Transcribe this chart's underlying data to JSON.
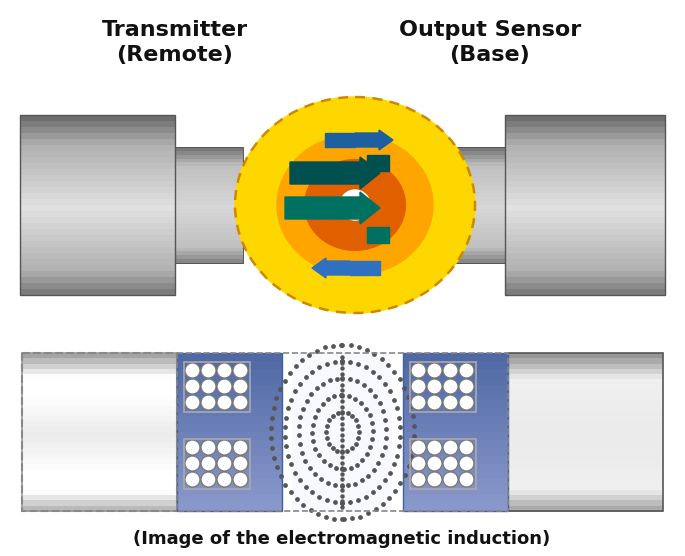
{
  "title_left": "Transmitter\n(Remote)",
  "title_right": "Output Sensor\n(Base)",
  "bottom_label": "(Image of the electromagnetic induction)",
  "bg_color": "#ffffff",
  "title_fontsize": 16,
  "label_fontsize": 13,
  "fig_width": 6.85,
  "fig_height": 5.56,
  "colors": {
    "yellow": "#FFD700",
    "orange_mid": "#FFA500",
    "orange_dark": "#E06000",
    "white": "#FFFFFF",
    "teal_dark": "#005050",
    "teal": "#007060",
    "blue": "#1E5FA0",
    "blue2": "#3070C0",
    "dashed_border": "#CC8800",
    "silver_hi": "#f0f0f0",
    "silver_lo": "#888888",
    "coil_gray": "#909090",
    "blue_panel": "#8090C0",
    "blue_panel_dark": "#5060A0",
    "dot_gray": "#555555"
  }
}
